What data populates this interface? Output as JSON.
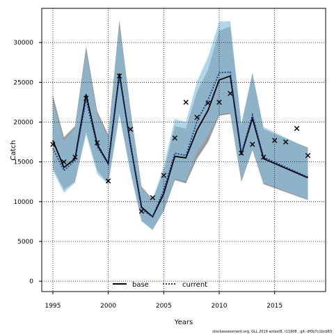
{
  "chart_data": {
    "type": "line",
    "title": "",
    "xlabel": "Years",
    "ylabel": "Catch",
    "xlim": [
      1994,
      2019.6
    ],
    "ylim": [
      -1300,
      34300
    ],
    "xticks": [
      1995,
      2000,
      2005,
      2010,
      2015
    ],
    "yticks": [
      0,
      5000,
      10000,
      15000,
      20000,
      25000,
      30000
    ],
    "grid": true,
    "legend_position": "bottom-center",
    "x": [
      1995,
      1996,
      1997,
      1998,
      1999,
      2000,
      2001,
      2002,
      2003,
      2004,
      2005,
      2006,
      2007,
      2008,
      2009,
      2010,
      2011,
      2012,
      2013,
      2014,
      2018
    ],
    "series": [
      {
        "name": "base",
        "style": "solid",
        "color": "#000000",
        "band_color": "#7a7a7a",
        "values": [
          17700,
          14300,
          15400,
          23500,
          17200,
          14800,
          26100,
          17200,
          9300,
          8100,
          11000,
          15700,
          15500,
          19000,
          21500,
          25300,
          25800,
          15900,
          20500,
          15400,
          13000
        ],
        "lower": [
          14200,
          11500,
          12500,
          18800,
          13900,
          12300,
          21100,
          13700,
          7600,
          6500,
          8800,
          12700,
          12300,
          15400,
          17500,
          20800,
          21000,
          12500,
          16500,
          12200,
          10200
        ],
        "upper": [
          23400,
          18100,
          19500,
          29500,
          21400,
          18400,
          32800,
          21600,
          11900,
          10300,
          13800,
          19500,
          19200,
          23800,
          26600,
          31500,
          32000,
          19600,
          26200,
          19100,
          16800
        ]
      },
      {
        "name": "current",
        "style": "dotted",
        "color": "#1a3a8c",
        "band_color": "#87bfe0",
        "values": [
          16700,
          13900,
          15200,
          22800,
          16900,
          14700,
          25800,
          17200,
          9000,
          8100,
          11500,
          16100,
          15800,
          20100,
          22800,
          26200,
          26300,
          16000,
          20900,
          15600,
          13100
        ],
        "lower": [
          13900,
          11100,
          12400,
          18400,
          13500,
          12100,
          20800,
          13700,
          7500,
          6400,
          9000,
          12900,
          12600,
          16200,
          18300,
          21000,
          21200,
          12700,
          16700,
          12400,
          10300
        ],
        "upper": [
          22600,
          17600,
          19300,
          28800,
          21000,
          18100,
          32300,
          21500,
          11700,
          10200,
          14500,
          20400,
          20000,
          25100,
          28200,
          32600,
          32700,
          19900,
          26100,
          19400,
          16700
        ]
      }
    ],
    "observed": {
      "marker": "x",
      "x": [
        1995,
        1996,
        1997,
        1998,
        1999,
        2000,
        2001,
        2002,
        2003,
        2004,
        2005,
        2006,
        2007,
        2008,
        2009,
        2010,
        2011,
        2012,
        2013,
        2014,
        2015,
        2016,
        2017,
        2018
      ],
      "values": [
        17200,
        15000,
        15600,
        23000,
        17400,
        12600,
        25800,
        19100,
        8800,
        10500,
        13300,
        18000,
        22500,
        20600,
        22400,
        22500,
        23600,
        16100,
        17200,
        15600,
        17700,
        17500,
        19200,
        15800
      ]
    },
    "footer": "stockassessment.org, GLL 2019 antest8, r11908 , git: df0b7c1bcb83"
  }
}
